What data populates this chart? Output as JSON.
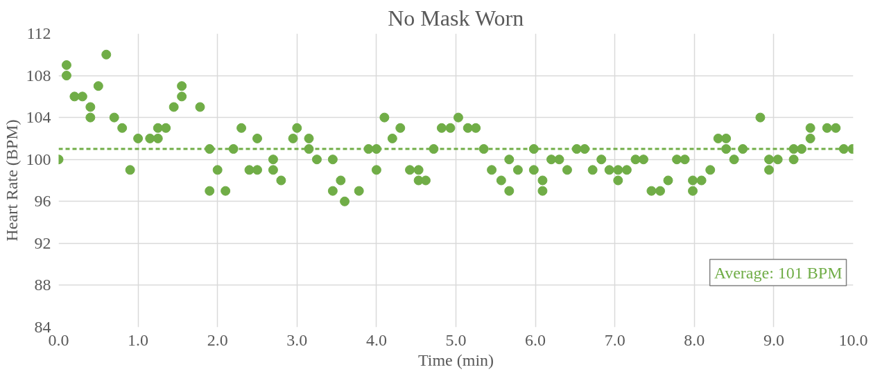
{
  "chart_data": {
    "type": "scatter",
    "title": "No Mask Worn",
    "xlabel": "Time (min)",
    "ylabel": "Heart Rate (BPM)",
    "x": [
      0.0,
      0.1,
      0.1,
      0.2,
      0.3,
      0.4,
      0.4,
      0.5,
      0.6,
      0.7,
      0.8,
      0.9,
      1.0,
      1.15,
      1.25,
      1.25,
      1.35,
      1.45,
      1.55,
      1.55,
      1.78,
      1.9,
      1.9,
      2.0,
      2.1,
      2.2,
      2.3,
      2.4,
      2.5,
      2.5,
      2.7,
      2.7,
      2.8,
      2.95,
      3.0,
      3.15,
      3.15,
      3.25,
      3.45,
      3.45,
      3.55,
      3.6,
      3.78,
      3.9,
      4.0,
      4.0,
      4.1,
      4.2,
      4.3,
      4.42,
      4.53,
      4.53,
      4.62,
      4.72,
      4.82,
      4.93,
      5.03,
      5.15,
      5.25,
      5.35,
      5.45,
      5.57,
      5.67,
      5.67,
      5.78,
      5.98,
      5.98,
      6.09,
      6.09,
      6.2,
      6.3,
      6.4,
      6.52,
      6.62,
      6.72,
      6.83,
      6.93,
      7.04,
      7.04,
      7.15,
      7.26,
      7.36,
      7.46,
      7.57,
      7.67,
      7.78,
      7.88,
      7.98,
      7.98,
      8.09,
      8.2,
      8.3,
      8.4,
      8.4,
      8.5,
      8.61,
      8.83,
      8.94,
      8.94,
      9.05,
      9.25,
      9.25,
      9.35,
      9.46,
      9.46,
      9.67,
      9.78,
      9.88,
      9.99
    ],
    "series": [
      {
        "color": "#70ad47",
        "values": [
          100,
          109,
          108,
          106,
          106,
          105,
          104,
          107,
          110,
          104,
          103,
          99,
          102,
          102,
          103,
          102,
          103,
          105,
          107,
          106,
          105,
          101,
          97,
          99,
          97,
          101,
          103,
          99,
          102,
          99,
          100,
          99,
          98,
          102,
          103,
          102,
          101,
          100,
          100,
          97,
          98,
          96,
          97,
          101,
          101,
          99,
          104,
          102,
          103,
          99,
          99,
          98,
          98,
          101,
          103,
          103,
          104,
          103,
          103,
          101,
          99,
          98,
          100,
          97,
          99,
          101,
          99,
          98,
          97,
          100,
          100,
          99,
          101,
          101,
          99,
          100,
          99,
          99,
          98,
          99,
          100,
          100,
          97,
          97,
          98,
          100,
          100,
          98,
          97,
          98,
          99,
          102,
          102,
          101,
          100,
          101,
          104,
          100,
          99,
          100,
          101,
          100,
          101,
          103,
          102,
          103,
          103,
          101,
          101
        ]
      }
    ],
    "xlim": [
      0,
      10
    ],
    "ylim": [
      84,
      112
    ],
    "xticks": [
      {
        "value": 0,
        "label": "0.0"
      },
      {
        "value": 1,
        "label": "1.0"
      },
      {
        "value": 2,
        "label": "2.0"
      },
      {
        "value": 3,
        "label": "3.0"
      },
      {
        "value": 4,
        "label": "4.0"
      },
      {
        "value": 5,
        "label": "5.0"
      },
      {
        "value": 6,
        "label": "6.0"
      },
      {
        "value": 7,
        "label": "7.0"
      },
      {
        "value": 8,
        "label": "8.0"
      },
      {
        "value": 9,
        "label": "9.0"
      },
      {
        "value": 10,
        "label": "10.0"
      }
    ],
    "yticks": [
      84,
      88,
      92,
      96,
      100,
      104,
      108,
      112
    ],
    "ref_lines": [
      {
        "axis": "y",
        "value": 101,
        "label": "Average: 101 BPM",
        "color": "#70ad47",
        "line_style": "dashed"
      }
    ],
    "grid": true,
    "marker": "circle"
  }
}
